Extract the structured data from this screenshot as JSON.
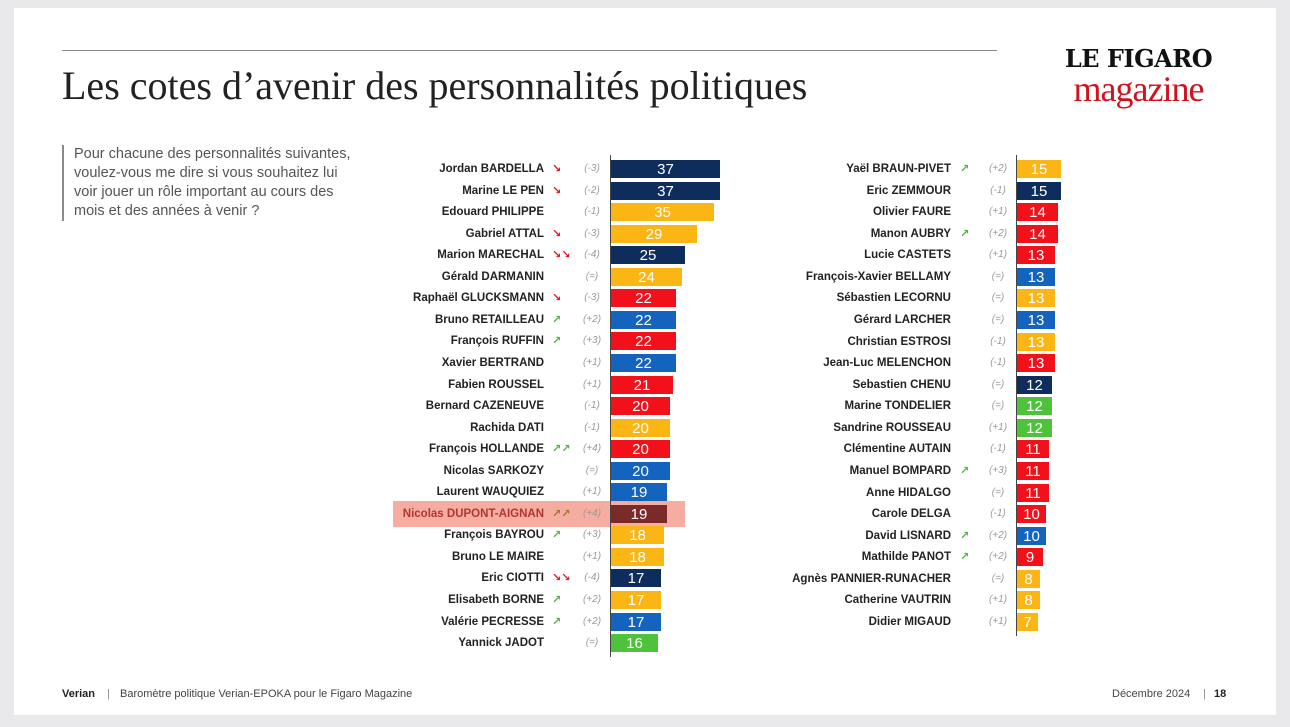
{
  "title": "Les cotes d’avenir des personnalités politiques",
  "logo": {
    "line1": "LE FIGARO",
    "line2": "magazine"
  },
  "question": "Pour chacune des personnalités suivantes, voulez-vous me dire si vous souhaitez lui voir jouer un rôle important au cours des mois et des années à venir ?",
  "footer": {
    "brand": "Verian",
    "source": "Baromètre politique Verian-EPOKA pour le Figaro Magazine",
    "date": "Décembre 2024",
    "page": "18"
  },
  "colors": {
    "navy": "#0e2d5c",
    "yellow": "#fbb515",
    "red": "#f2101a",
    "blue": "#1464bf",
    "green": "#4ec23b",
    "highlight": "#f5a397",
    "highlight_bar": "#7b2a2a",
    "arrow_down": "#e3111b",
    "arrow_up": "#4ab53a"
  },
  "chart_data": [
    {
      "type": "bar",
      "orientation": "horizontal",
      "xlim": [
        0,
        40
      ],
      "highlighted": "Nicolas DUPONT-AIGNAN",
      "rows": [
        {
          "name": "Jordan BARDELLA",
          "value": 37,
          "change": "(-3)",
          "arrow": "down",
          "color": "navy"
        },
        {
          "name": "Marine LE PEN",
          "value": 37,
          "change": "(-2)",
          "arrow": "down",
          "color": "navy"
        },
        {
          "name": "Edouard PHILIPPE",
          "value": 35,
          "change": "(-1)",
          "arrow": "",
          "color": "yellow"
        },
        {
          "name": "Gabriel ATTAL",
          "value": 29,
          "change": "(-3)",
          "arrow": "down",
          "color": "yellow"
        },
        {
          "name": "Marion MARECHAL",
          "value": 25,
          "change": "(-4)",
          "arrow": "down2",
          "color": "navy"
        },
        {
          "name": "Gérald DARMANIN",
          "value": 24,
          "change": "(=)",
          "arrow": "",
          "color": "yellow"
        },
        {
          "name": "Raphaël GLUCKSMANN",
          "value": 22,
          "change": "(-3)",
          "arrow": "down",
          "color": "red"
        },
        {
          "name": "Bruno RETAILLEAU",
          "value": 22,
          "change": "(+2)",
          "arrow": "up",
          "color": "blue"
        },
        {
          "name": "François RUFFIN",
          "value": 22,
          "change": "(+3)",
          "arrow": "up",
          "color": "red"
        },
        {
          "name": "Xavier BERTRAND",
          "value": 22,
          "change": "(+1)",
          "arrow": "",
          "color": "blue"
        },
        {
          "name": "Fabien ROUSSEL",
          "value": 21,
          "change": "(+1)",
          "arrow": "",
          "color": "red"
        },
        {
          "name": "Bernard CAZENEUVE",
          "value": 20,
          "change": "(-1)",
          "arrow": "",
          "color": "red"
        },
        {
          "name": "Rachida DATI",
          "value": 20,
          "change": "(-1)",
          "arrow": "",
          "color": "yellow"
        },
        {
          "name": "François HOLLANDE",
          "value": 20,
          "change": "(+4)",
          "arrow": "up2",
          "color": "red"
        },
        {
          "name": "Nicolas SARKOZY",
          "value": 20,
          "change": "(=)",
          "arrow": "",
          "color": "blue"
        },
        {
          "name": "Laurent WAUQUIEZ",
          "value": 19,
          "change": "(+1)",
          "arrow": "",
          "color": "blue"
        },
        {
          "name": "Nicolas DUPONT-AIGNAN",
          "value": 19,
          "change": "(+4)",
          "arrow": "up2",
          "color": "highlight_bar"
        },
        {
          "name": "François BAYROU",
          "value": 18,
          "change": "(+3)",
          "arrow": "up",
          "color": "yellow"
        },
        {
          "name": "Bruno LE MAIRE",
          "value": 18,
          "change": "(+1)",
          "arrow": "",
          "color": "yellow"
        },
        {
          "name": "Eric CIOTTI",
          "value": 17,
          "change": "(-4)",
          "arrow": "down2",
          "color": "navy"
        },
        {
          "name": "Elisabeth BORNE",
          "value": 17,
          "change": "(+2)",
          "arrow": "up",
          "color": "yellow"
        },
        {
          "name": "Valérie PECRESSE",
          "value": 17,
          "change": "(+2)",
          "arrow": "up",
          "color": "blue"
        },
        {
          "name": "Yannick JADOT",
          "value": 16,
          "change": "(=)",
          "arrow": "",
          "color": "green"
        }
      ]
    },
    {
      "type": "bar",
      "orientation": "horizontal",
      "xlim": [
        0,
        40
      ],
      "rows": [
        {
          "name": "Yaël BRAUN-PIVET",
          "value": 15,
          "change": "(+2)",
          "arrow": "up",
          "color": "yellow"
        },
        {
          "name": "Eric ZEMMOUR",
          "value": 15,
          "change": "(-1)",
          "arrow": "",
          "color": "navy"
        },
        {
          "name": "Olivier FAURE",
          "value": 14,
          "change": "(+1)",
          "arrow": "",
          "color": "red"
        },
        {
          "name": "Manon AUBRY",
          "value": 14,
          "change": "(+2)",
          "arrow": "up",
          "color": "red"
        },
        {
          "name": "Lucie CASTETS",
          "value": 13,
          "change": "(+1)",
          "arrow": "",
          "color": "red"
        },
        {
          "name": "François-Xavier BELLAMY",
          "value": 13,
          "change": "(=)",
          "arrow": "",
          "color": "blue"
        },
        {
          "name": "Sébastien LECORNU",
          "value": 13,
          "change": "(=)",
          "arrow": "",
          "color": "yellow"
        },
        {
          "name": "Gérard LARCHER",
          "value": 13,
          "change": "(=)",
          "arrow": "",
          "color": "blue"
        },
        {
          "name": "Christian ESTROSI",
          "value": 13,
          "change": "(-1)",
          "arrow": "",
          "color": "yellow"
        },
        {
          "name": "Jean-Luc MELENCHON",
          "value": 13,
          "change": "(-1)",
          "arrow": "",
          "color": "red"
        },
        {
          "name": "Sebastien CHENU",
          "value": 12,
          "change": "(=)",
          "arrow": "",
          "color": "navy"
        },
        {
          "name": "Marine TONDELIER",
          "value": 12,
          "change": "(=)",
          "arrow": "",
          "color": "green"
        },
        {
          "name": "Sandrine ROUSSEAU",
          "value": 12,
          "change": "(+1)",
          "arrow": "",
          "color": "green"
        },
        {
          "name": "Clémentine AUTAIN",
          "value": 11,
          "change": "(-1)",
          "arrow": "",
          "color": "red"
        },
        {
          "name": "Manuel BOMPARD",
          "value": 11,
          "change": "(+3)",
          "arrow": "up",
          "color": "red"
        },
        {
          "name": "Anne HIDALGO",
          "value": 11,
          "change": "(=)",
          "arrow": "",
          "color": "red"
        },
        {
          "name": "Carole DELGA",
          "value": 10,
          "change": "(-1)",
          "arrow": "",
          "color": "red"
        },
        {
          "name": "David LISNARD",
          "value": 10,
          "change": "(+2)",
          "arrow": "up",
          "color": "blue"
        },
        {
          "name": "Mathilde PANOT",
          "value": 9,
          "change": "(+2)",
          "arrow": "up",
          "color": "red"
        },
        {
          "name": "Agnès PANNIER-RUNACHER",
          "value": 8,
          "change": "(=)",
          "arrow": "",
          "color": "yellow"
        },
        {
          "name": "Catherine VAUTRIN",
          "value": 8,
          "change": "(+1)",
          "arrow": "",
          "color": "yellow"
        },
        {
          "name": "Didier MIGAUD",
          "value": 7,
          "change": "(+1)",
          "arrow": "",
          "color": "yellow"
        }
      ]
    }
  ]
}
